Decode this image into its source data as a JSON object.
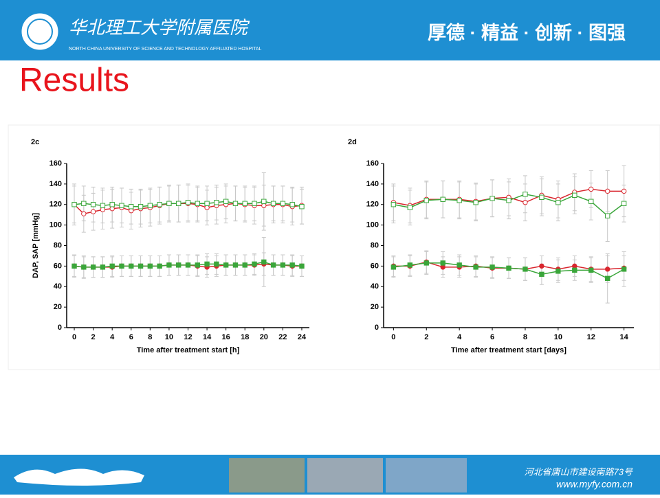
{
  "slide": {
    "hospital_cn": "华北理工大学附属医院",
    "hospital_en": "NORTH CHINA UNIVERSITY OF SCIENCE AND TECHNOLOGY AFFILIATED HOSPITAL",
    "motto": "厚德 · 精益 · 创新 · 图强",
    "title": "Results",
    "address": "河北省唐山市建设南路73号",
    "website": "www.myfy.com.cn"
  },
  "chart_data": [
    {
      "type": "line",
      "panel": "2c",
      "y_label": "DAP, SAP [mmHg]",
      "x_label": "Time after treatment start [h]",
      "x": [
        0,
        1,
        2,
        3,
        4,
        5,
        6,
        7,
        8,
        9,
        10,
        11,
        12,
        13,
        14,
        15,
        16,
        17,
        18,
        19,
        20,
        21,
        22,
        23,
        24
      ],
      "xlim": [
        -0.8,
        24.8
      ],
      "xticks": [
        0,
        2,
        4,
        6,
        8,
        10,
        12,
        14,
        16,
        18,
        20,
        22,
        24
      ],
      "ylim": [
        0,
        160
      ],
      "yticks": [
        0,
        20,
        40,
        60,
        80,
        100,
        120,
        140,
        160
      ],
      "series": [
        {
          "color": "#d9262e",
          "marker": "circle",
          "filled": false,
          "values": [
            120,
            111,
            113,
            115,
            116,
            117,
            114,
            116,
            117,
            119,
            121,
            121,
            121,
            120,
            117,
            119,
            120,
            121,
            120,
            119,
            119,
            120,
            120,
            118,
            119
          ],
          "errors": [
            20,
            18,
            18,
            19,
            19,
            19,
            18,
            18,
            18,
            18,
            18,
            18,
            18,
            17,
            17,
            18,
            18,
            17,
            17,
            18,
            20,
            18,
            18,
            18,
            18
          ]
        },
        {
          "color": "#3aa63a",
          "marker": "square",
          "filled": false,
          "values": [
            120,
            121,
            120,
            119,
            120,
            119,
            118,
            118,
            119,
            120,
            121,
            121,
            122,
            121,
            121,
            122,
            123,
            121,
            121,
            121,
            123,
            121,
            121,
            120,
            118
          ],
          "errors": [
            18,
            17,
            17,
            17,
            17,
            17,
            17,
            17,
            17,
            17,
            17,
            18,
            18,
            17,
            17,
            17,
            17,
            17,
            17,
            17,
            28,
            17,
            17,
            17,
            17
          ]
        },
        {
          "color": "#d9262e",
          "marker": "circle",
          "filled": true,
          "values": [
            60,
            59,
            59,
            59,
            59,
            60,
            60,
            60,
            60,
            60,
            61,
            61,
            61,
            60,
            59,
            60,
            61,
            61,
            61,
            61,
            62,
            61,
            61,
            60,
            60
          ],
          "errors": [
            11,
            11,
            10,
            10,
            10,
            10,
            10,
            10,
            10,
            10,
            10,
            10,
            10,
            10,
            10,
            10,
            10,
            10,
            10,
            10,
            11,
            10,
            10,
            10,
            10
          ]
        },
        {
          "color": "#3aa63a",
          "marker": "square",
          "filled": true,
          "values": [
            60,
            59,
            59,
            59,
            60,
            60,
            60,
            60,
            60,
            60,
            61,
            61,
            61,
            61,
            62,
            62,
            61,
            61,
            61,
            62,
            64,
            61,
            61,
            61,
            60
          ],
          "errors": [
            10,
            10,
            10,
            10,
            10,
            10,
            10,
            10,
            10,
            10,
            10,
            10,
            10,
            10,
            10,
            10,
            10,
            10,
            10,
            10,
            24,
            10,
            10,
            10,
            10
          ]
        }
      ]
    },
    {
      "type": "line",
      "panel": "2d",
      "x_label": "Time after treatment start [days]",
      "x": [
        0,
        1,
        2,
        3,
        4,
        5,
        6,
        7,
        8,
        9,
        10,
        11,
        12,
        13,
        14
      ],
      "xlim": [
        -0.6,
        14.6
      ],
      "xticks": [
        0,
        2,
        4,
        6,
        8,
        10,
        12,
        14
      ],
      "ylim": [
        0,
        160
      ],
      "yticks": [
        0,
        20,
        40,
        60,
        80,
        100,
        120,
        140,
        160
      ],
      "series": [
        {
          "color": "#d9262e",
          "marker": "circle",
          "filled": false,
          "values": [
            122,
            119,
            125,
            125,
            125,
            123,
            126,
            127,
            122,
            129,
            125,
            132,
            135,
            133,
            133
          ],
          "errors": [
            18,
            17,
            18,
            18,
            18,
            18,
            18,
            18,
            18,
            18,
            18,
            18,
            18,
            20,
            25
          ]
        },
        {
          "color": "#3aa63a",
          "marker": "square",
          "filled": false,
          "values": [
            120,
            117,
            124,
            125,
            124,
            122,
            126,
            124,
            130,
            127,
            122,
            129,
            123,
            109,
            121
          ],
          "errors": [
            18,
            17,
            18,
            18,
            18,
            18,
            18,
            18,
            18,
            18,
            18,
            18,
            18,
            25,
            18
          ]
        },
        {
          "color": "#d9262e",
          "marker": "circle",
          "filled": true,
          "values": [
            60,
            60,
            64,
            59,
            59,
            60,
            58,
            58,
            57,
            60,
            57,
            60,
            57,
            57,
            58
          ],
          "errors": [
            10,
            10,
            11,
            10,
            10,
            10,
            10,
            10,
            11,
            10,
            11,
            10,
            12,
            13,
            12
          ]
        },
        {
          "color": "#3aa63a",
          "marker": "square",
          "filled": true,
          "values": [
            59,
            61,
            63,
            63,
            61,
            59,
            59,
            58,
            57,
            52,
            55,
            56,
            56,
            48,
            57
          ],
          "errors": [
            10,
            10,
            11,
            11,
            10,
            10,
            10,
            10,
            11,
            10,
            11,
            10,
            12,
            24,
            17
          ]
        }
      ]
    }
  ]
}
